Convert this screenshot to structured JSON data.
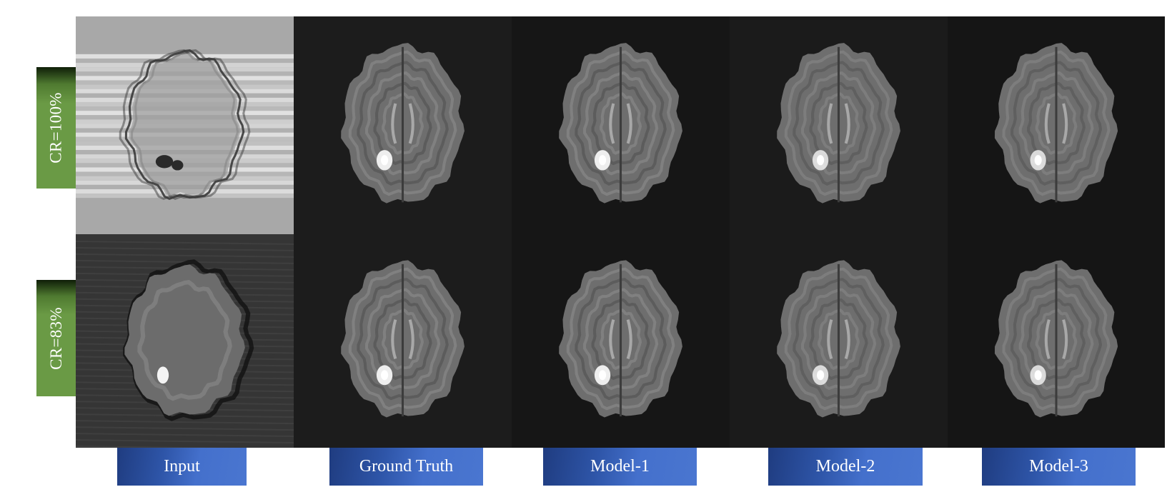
{
  "row_labels": [
    "CR=100%",
    "CR=83%"
  ],
  "column_labels": [
    "Input",
    "Ground Truth",
    "Model-1",
    "Model-2",
    "Model-3"
  ],
  "image_grid": {
    "rows": 2,
    "columns": 5,
    "content": "brain-mri-slice",
    "backgrounds": {
      "input_row1": "#a8a8a8",
      "input_row2": "#353535",
      "ground_truth": "#1c1c1c",
      "model1": "#161616",
      "model2": "#1b1b1b",
      "model3": "#151515"
    }
  },
  "colors": {
    "row_label_green": "#6a9a45",
    "column_label_blue": "#4470cc",
    "label_text": "#ffffff",
    "page_background": "#ffffff"
  }
}
